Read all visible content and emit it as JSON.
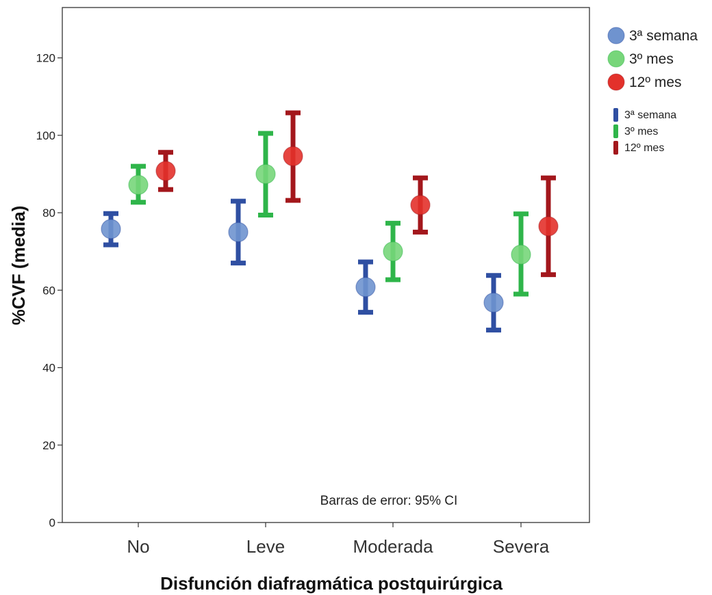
{
  "chart_data": {
    "type": "scatter",
    "subtype": "error-bar",
    "xlabel": "Disfunción diafragmática postquirúrgica",
    "ylabel": "%CVF (media)",
    "note": "Barras de error: 95% CI",
    "categories": [
      "No",
      "Leve",
      "Moderada",
      "Severa"
    ],
    "ylim": [
      0,
      133
    ],
    "yticks": [
      0,
      20,
      40,
      60,
      80,
      100,
      120
    ],
    "grid": false,
    "legend_position": "top-right",
    "series": [
      {
        "name": "3ª semana",
        "point_color": "#6f93cf",
        "bar_color": "#2f4fa2",
        "mean": [
          75.8,
          75.0,
          60.8,
          56.8
        ],
        "lower": [
          71.7,
          67.0,
          54.3,
          49.7
        ],
        "upper": [
          79.8,
          83.0,
          67.3,
          63.8
        ]
      },
      {
        "name": "3º mes",
        "point_color": "#77d67a",
        "bar_color": "#2fb54a",
        "mean": [
          87.2,
          90.0,
          70.0,
          69.2
        ],
        "lower": [
          82.7,
          79.4,
          62.7,
          59.0
        ],
        "upper": [
          92.0,
          100.5,
          77.3,
          79.7
        ]
      },
      {
        "name": "12º mes",
        "point_color": "#e3312b",
        "bar_color": "#a3171c",
        "mean": [
          90.8,
          94.6,
          82.0,
          76.5
        ],
        "lower": [
          86.0,
          83.2,
          75.0,
          64.0
        ],
        "upper": [
          95.6,
          105.8,
          89.0,
          89.0
        ]
      }
    ]
  }
}
